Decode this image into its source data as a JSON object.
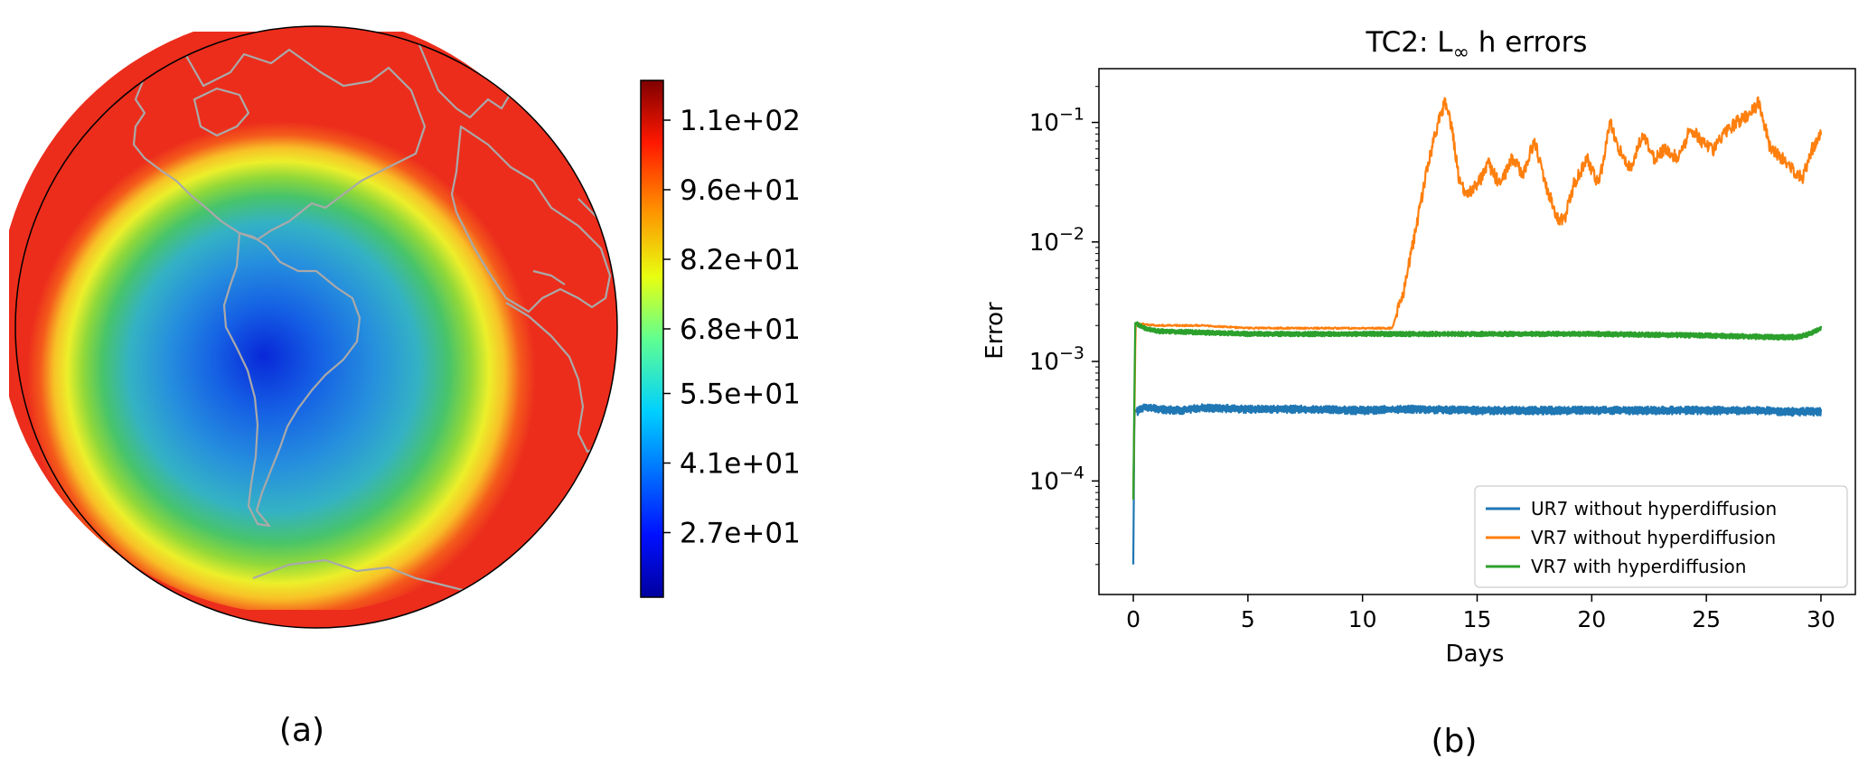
{
  "panel_a": {
    "label": "(a)",
    "colorbar": {
      "ticks": [
        "1.1e+02",
        "9.6e+01",
        "8.2e+01",
        "6.8e+01",
        "5.5e+01",
        "4.1e+01",
        "2.7e+01"
      ]
    }
  },
  "panel_b": {
    "label": "(b)"
  },
  "chart_data": [
    {
      "type": "heatmap",
      "colormap": "jet",
      "colorbar_ticks": [
        110,
        96,
        82,
        68,
        55,
        41,
        27
      ],
      "colorbar_tick_labels": [
        "1.1e+02",
        "9.6e+01",
        "8.2e+01",
        "6.8e+01",
        "5.5e+01",
        "4.1e+01",
        "2.7e+01"
      ],
      "colorbar_range": [
        14,
        118
      ]
    },
    {
      "type": "line",
      "title_prefix": "TC2: L",
      "title_sub": "∞",
      "title_suffix": " h errors",
      "xlabel": "Days",
      "ylabel": "Error",
      "xlim": [
        -1.5,
        31.5
      ],
      "ylim_log10": [
        -4.95,
        -0.55
      ],
      "y_scale": "log",
      "xticks": [
        0,
        5,
        10,
        15,
        20,
        25,
        30
      ],
      "yticks_exp": [
        -1,
        -2,
        -3,
        -4
      ],
      "legend_position": "lower right",
      "series": [
        {
          "name": "UR7 without hyperdiffusion",
          "color": "#1f77b4",
          "x": [
            0,
            0.05,
            0.15,
            0.5,
            1,
            2,
            3,
            5,
            7,
            10,
            12,
            15,
            18,
            20,
            22,
            25,
            27,
            29,
            30
          ],
          "y": [
            2e-05,
            0.0004,
            0.00038,
            0.00042,
            0.0004,
            0.00039,
            0.00041,
            0.0004,
            0.0004,
            0.00039,
            0.0004,
            0.00039,
            0.00039,
            0.00039,
            0.00039,
            0.00039,
            0.00039,
            0.00038,
            0.00038
          ],
          "band": 3e-05
        },
        {
          "name": "VR7 without hyperdiffusion",
          "color": "#ff7f0e",
          "x": [
            0,
            0.1,
            1,
            3,
            5,
            7,
            9,
            11,
            11.3,
            11.8,
            12.3,
            12.8,
            13.3,
            13.6,
            13.9,
            14.2,
            14.5,
            15,
            15.5,
            16,
            16.5,
            17,
            17.5,
            18,
            18.5,
            18.8,
            19.2,
            19.8,
            20.3,
            20.8,
            21.2,
            21.7,
            22.2,
            22.7,
            23.2,
            23.8,
            24.3,
            24.8,
            25.3,
            25.8,
            26.3,
            26.9,
            27.3,
            27.8,
            28.3,
            28.8,
            29.2,
            29.6,
            30
          ],
          "y": [
            7e-05,
            0.0021,
            0.002,
            0.002,
            0.0019,
            0.0019,
            0.0019,
            0.0019,
            0.0019,
            0.004,
            0.012,
            0.04,
            0.1,
            0.15,
            0.09,
            0.035,
            0.024,
            0.03,
            0.045,
            0.03,
            0.05,
            0.038,
            0.07,
            0.03,
            0.016,
            0.015,
            0.03,
            0.05,
            0.03,
            0.1,
            0.06,
            0.04,
            0.08,
            0.05,
            0.06,
            0.05,
            0.09,
            0.07,
            0.06,
            0.08,
            0.1,
            0.12,
            0.15,
            0.06,
            0.05,
            0.04,
            0.035,
            0.06,
            0.08
          ],
          "band": 0.0001
        },
        {
          "name": "VR7 with hyperdiffusion",
          "color": "#2ca02c",
          "x": [
            0,
            0.08,
            0.5,
            1,
            3,
            5,
            8,
            10,
            15,
            20,
            25,
            28,
            29,
            29.5,
            30
          ],
          "y": [
            7e-05,
            0.0021,
            0.0019,
            0.0018,
            0.00175,
            0.0017,
            0.0017,
            0.0017,
            0.0017,
            0.0017,
            0.00165,
            0.0016,
            0.0016,
            0.0017,
            0.0019
          ],
          "band": 8e-05
        }
      ]
    }
  ]
}
